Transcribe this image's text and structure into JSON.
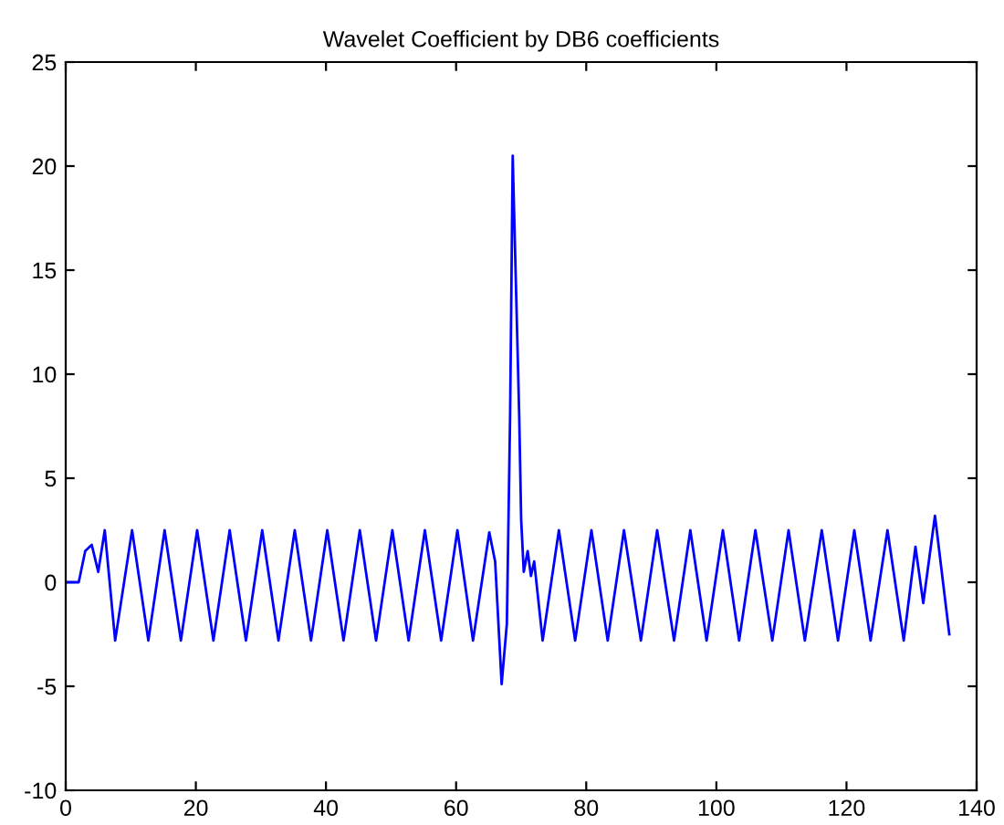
{
  "chart_data": {
    "type": "line",
    "title": "Wavelet Coefficient by DB6 coefficients",
    "x": [
      0,
      2,
      3,
      4,
      5,
      6,
      7.6,
      10.2,
      12.7,
      15.2,
      17.7,
      20.2,
      22.7,
      25.2,
      27.7,
      30.2,
      32.7,
      35.2,
      37.7,
      40.2,
      42.7,
      45.2,
      47.7,
      50.2,
      52.7,
      55.2,
      57.7,
      60.2,
      62.6,
      65.1,
      66,
      67,
      67.8,
      68.3,
      68.7,
      68.9,
      69.3,
      69.7,
      70,
      70.4,
      71,
      71.5,
      72,
      73.3,
      75.8,
      78.3,
      80.8,
      83.3,
      85.8,
      88.4,
      90.9,
      93.5,
      96,
      98.5,
      101,
      103.5,
      106,
      108.6,
      111.1,
      113.6,
      116.2,
      118.7,
      121.2,
      123.7,
      126.3,
      128.8,
      130.6,
      131.8,
      133.6,
      135.8
    ],
    "series": [
      {
        "color": "#0000ff",
        "values": [
          0,
          0,
          1.5,
          1.8,
          0.5,
          2.5,
          -2.8,
          2.5,
          -2.8,
          2.5,
          -2.8,
          2.5,
          -2.8,
          2.5,
          -2.8,
          2.5,
          -2.8,
          2.5,
          -2.8,
          2.5,
          -2.8,
          2.5,
          -2.8,
          2.5,
          -2.8,
          2.5,
          -2.8,
          2.5,
          -2.8,
          2.4,
          1,
          -4.9,
          -2,
          8,
          20.5,
          18,
          13,
          8,
          3,
          0.5,
          1.5,
          0.3,
          1,
          -2.8,
          2.5,
          -2.8,
          2.5,
          -2.8,
          2.5,
          -2.8,
          2.5,
          -2.8,
          2.5,
          -2.8,
          2.5,
          -2.8,
          2.5,
          -2.8,
          2.5,
          -2.8,
          2.5,
          -2.8,
          2.5,
          -2.8,
          2.5,
          -2.8,
          1.7,
          -1,
          3.2,
          -2.5
        ]
      }
    ],
    "xlim": [
      0,
      140
    ],
    "xticks": [
      0,
      20,
      40,
      60,
      80,
      100,
      120,
      140
    ],
    "ylim": [
      -10,
      25
    ],
    "yticks": [
      -10,
      -5,
      0,
      5,
      10,
      15,
      20,
      25
    ],
    "grid": false
  }
}
